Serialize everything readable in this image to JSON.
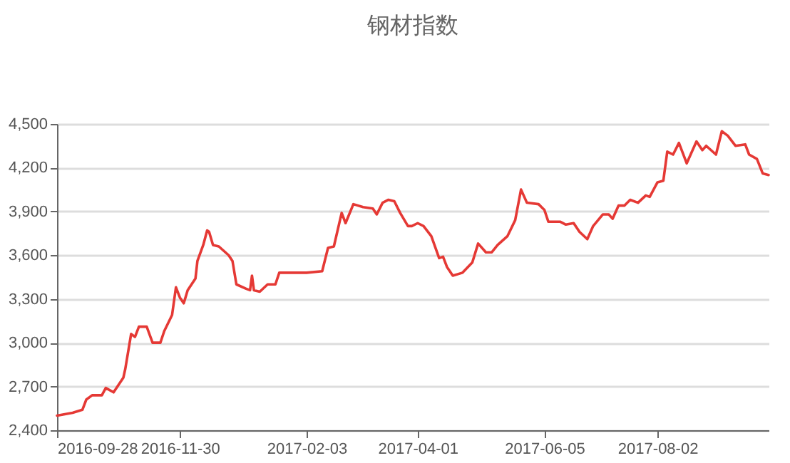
{
  "chart_data": {
    "type": "line",
    "title": "钢材指数",
    "x": [
      "2016-09-28",
      "2016-10-06",
      "2016-10-11",
      "2016-10-13",
      "2016-10-16",
      "2016-10-21",
      "2016-10-23",
      "2016-10-27",
      "2016-11-01",
      "2016-11-02",
      "2016-11-05",
      "2016-11-07",
      "2016-11-09",
      "2016-11-13",
      "2016-11-16",
      "2016-11-20",
      "2016-11-22",
      "2016-11-26",
      "2016-11-28",
      "2016-11-30",
      "2016-12-02",
      "2016-12-04",
      "2016-12-08",
      "2016-12-09",
      "2016-12-12",
      "2016-12-14",
      "2016-12-15",
      "2016-12-17",
      "2016-12-20",
      "2016-12-25",
      "2016-12-27",
      "2016-12-29",
      "2017-01-03",
      "2017-01-05",
      "2017-01-06",
      "2017-01-07",
      "2017-01-10",
      "2017-01-14",
      "2017-01-18",
      "2017-01-20",
      "2017-02-03",
      "2017-02-11",
      "2017-02-14",
      "2017-02-17",
      "2017-02-21",
      "2017-02-23",
      "2017-02-27",
      "2017-03-04",
      "2017-03-09",
      "2017-03-11",
      "2017-03-14",
      "2017-03-17",
      "2017-03-20",
      "2017-03-23",
      "2017-03-27",
      "2017-03-29",
      "2017-04-01",
      "2017-04-04",
      "2017-04-08",
      "2017-04-12",
      "2017-04-14",
      "2017-04-16",
      "2017-04-19",
      "2017-04-24",
      "2017-04-29",
      "2017-05-02",
      "2017-05-06",
      "2017-05-09",
      "2017-05-12",
      "2017-05-17",
      "2017-05-21",
      "2017-05-24",
      "2017-05-27",
      "2017-06-02",
      "2017-06-05",
      "2017-06-07",
      "2017-06-13",
      "2017-06-16",
      "2017-06-20",
      "2017-06-23",
      "2017-06-27",
      "2017-06-30",
      "2017-07-05",
      "2017-07-08",
      "2017-07-10",
      "2017-07-13",
      "2017-07-16",
      "2017-07-19",
      "2017-07-23",
      "2017-07-27",
      "2017-07-29",
      "2017-08-02",
      "2017-08-05",
      "2017-08-07",
      "2017-08-10",
      "2017-08-13",
      "2017-08-17",
      "2017-08-22",
      "2017-08-25",
      "2017-08-27",
      "2017-09-01",
      "2017-09-04",
      "2017-09-07",
      "2017-09-11",
      "2017-09-16",
      "2017-09-18",
      "2017-09-22",
      "2017-09-25",
      "2017-09-28"
    ],
    "series": [
      {
        "color": "#e53935",
        "values": [
          2500,
          2520,
          2540,
          2610,
          2640,
          2640,
          2690,
          2660,
          2760,
          2820,
          3060,
          3040,
          3110,
          3110,
          3000,
          3000,
          3080,
          3190,
          3380,
          3310,
          3270,
          3360,
          3440,
          3560,
          3670,
          3770,
          3760,
          3670,
          3660,
          3600,
          3560,
          3400,
          3370,
          3360,
          3460,
          3360,
          3350,
          3400,
          3400,
          3480,
          3480,
          3490,
          3650,
          3660,
          3890,
          3820,
          3950,
          3930,
          3920,
          3880,
          3960,
          3980,
          3970,
          3890,
          3800,
          3800,
          3820,
          3800,
          3730,
          3580,
          3590,
          3520,
          3460,
          3480,
          3550,
          3680,
          3620,
          3620,
          3670,
          3730,
          3840,
          4050,
          3960,
          3950,
          3910,
          3830,
          3830,
          3810,
          3820,
          3760,
          3710,
          3800,
          3880,
          3880,
          3850,
          3940,
          3940,
          3980,
          3960,
          4010,
          4000,
          4100,
          4110,
          4310,
          4290,
          4370,
          4230,
          4380,
          4320,
          4350,
          4290,
          4450,
          4420,
          4350,
          4360,
          4290,
          4260,
          4160,
          4150
        ]
      }
    ],
    "xlim": [
      "2016-09-28",
      "2017-09-28"
    ],
    "xticks": [
      "2016-09-28",
      "2016-11-30",
      "2017-02-03",
      "2017-04-01",
      "2017-06-05",
      "2017-08-02"
    ],
    "ylim": [
      2400,
      4500
    ],
    "yticks": [
      {
        "value": 2400,
        "label": "2,400"
      },
      {
        "value": 2700,
        "label": "2,700"
      },
      {
        "value": 3000,
        "label": "3,000"
      },
      {
        "value": 3300,
        "label": "3,300"
      },
      {
        "value": 3600,
        "label": "3,600"
      },
      {
        "value": 3900,
        "label": "3,900"
      },
      {
        "value": 4200,
        "label": "4,200"
      },
      {
        "value": 4500,
        "label": "4,500"
      }
    ],
    "grid": "y",
    "marker": "none",
    "line_style": "solid"
  }
}
